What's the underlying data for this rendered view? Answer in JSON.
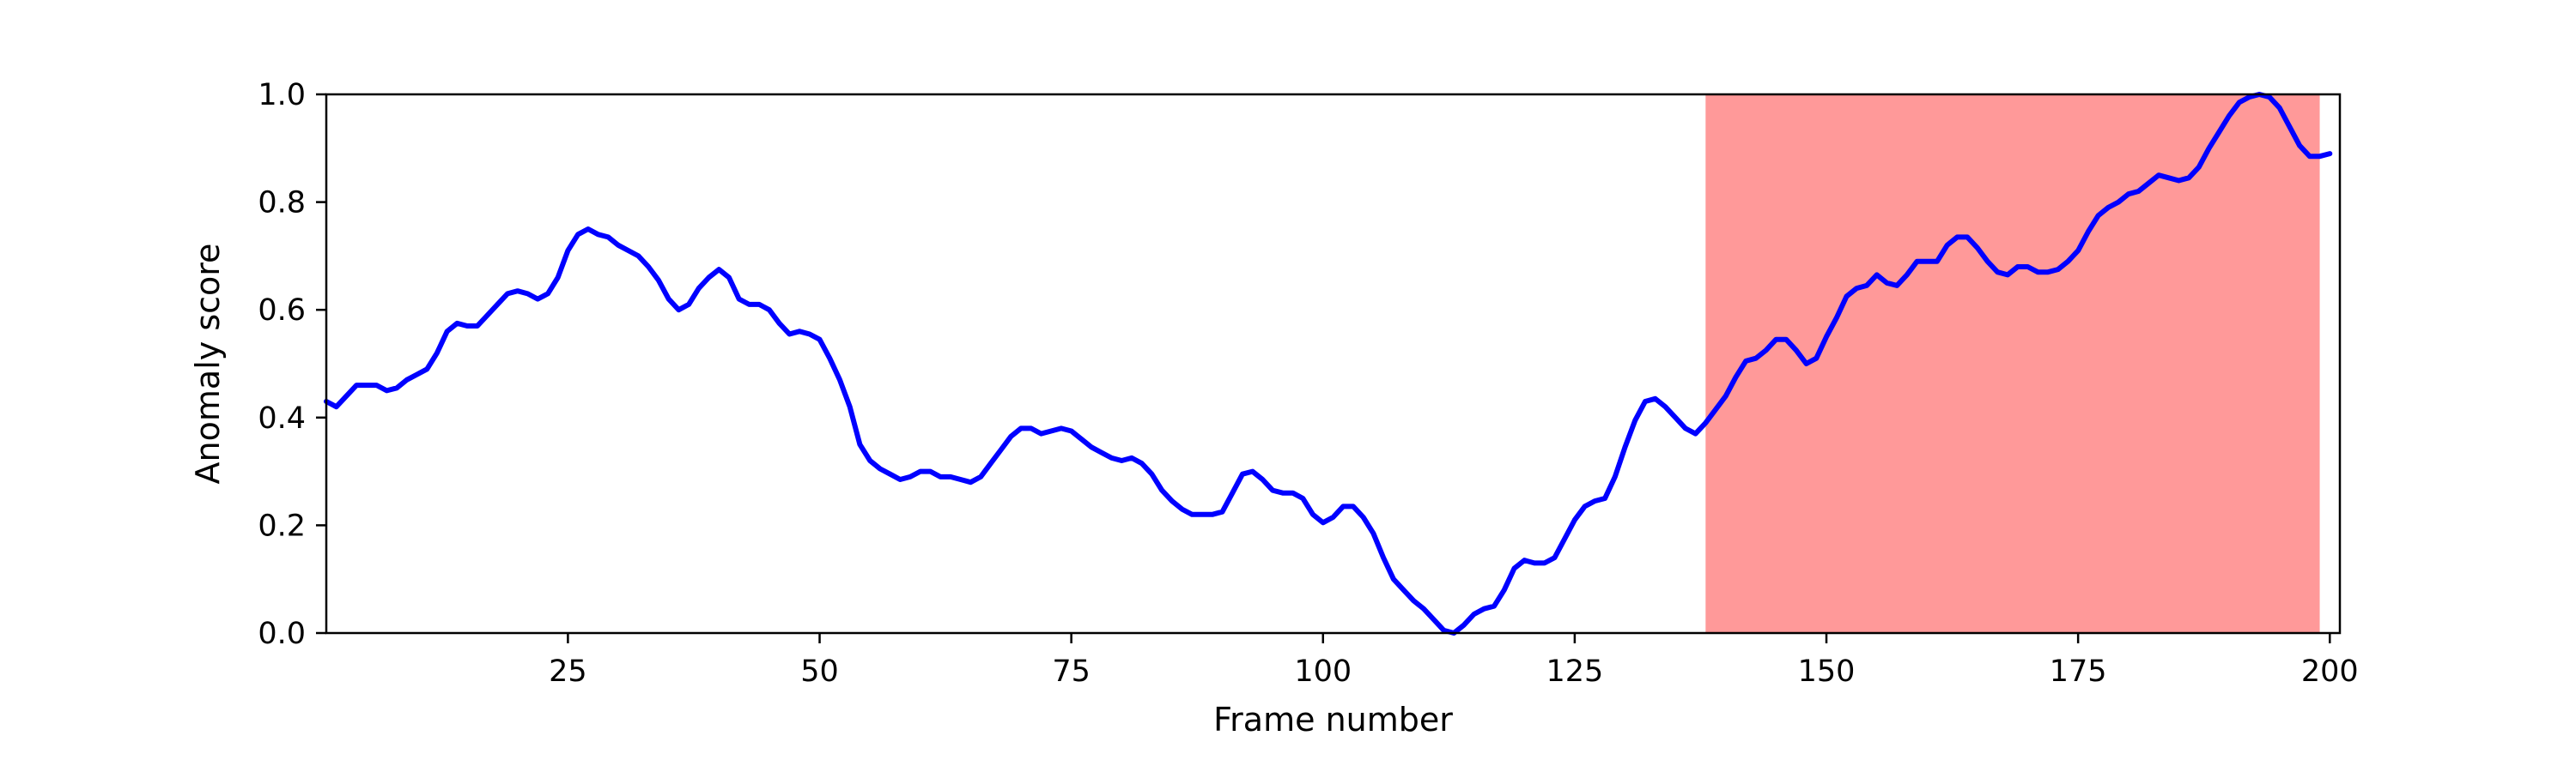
{
  "chart_data": {
    "type": "line",
    "title": "",
    "xlabel": "Frame number",
    "ylabel": "Anomaly score",
    "xlim": [
      1,
      201
    ],
    "ylim": [
      0,
      1
    ],
    "xticks": [
      25,
      50,
      75,
      100,
      125,
      150,
      175,
      200
    ],
    "yticks": [
      0.0,
      0.2,
      0.4,
      0.6,
      0.8,
      1.0
    ],
    "ytick_labels": [
      "0.0",
      "0.2",
      "0.4",
      "0.6",
      "0.8",
      "1.0"
    ],
    "grid": false,
    "highlight_region": {
      "x_start": 138,
      "x_end": 199,
      "color": "#ff9999"
    },
    "series": [
      {
        "color": "#0000ff",
        "x": [
          1,
          2,
          3,
          4,
          5,
          6,
          7,
          8,
          9,
          10,
          11,
          12,
          13,
          14,
          15,
          16,
          17,
          18,
          19,
          20,
          21,
          22,
          23,
          24,
          25,
          26,
          27,
          28,
          29,
          30,
          31,
          32,
          33,
          34,
          35,
          36,
          37,
          38,
          39,
          40,
          41,
          42,
          43,
          44,
          45,
          46,
          47,
          48,
          49,
          50,
          51,
          52,
          53,
          54,
          55,
          56,
          57,
          58,
          59,
          60,
          61,
          62,
          63,
          64,
          65,
          66,
          67,
          68,
          69,
          70,
          71,
          72,
          73,
          74,
          75,
          76,
          77,
          78,
          79,
          80,
          81,
          82,
          83,
          84,
          85,
          86,
          87,
          88,
          89,
          90,
          91,
          92,
          93,
          94,
          95,
          96,
          97,
          98,
          99,
          100,
          101,
          102,
          103,
          104,
          105,
          106,
          107,
          108,
          109,
          110,
          111,
          112,
          113,
          114,
          115,
          116,
          117,
          118,
          119,
          120,
          121,
          122,
          123,
          124,
          125,
          126,
          127,
          128,
          129,
          130,
          131,
          132,
          133,
          134,
          135,
          136,
          137,
          138,
          139,
          140,
          141,
          142,
          143,
          144,
          145,
          146,
          147,
          148,
          149,
          150,
          151,
          152,
          153,
          154,
          155,
          156,
          157,
          158,
          159,
          160,
          161,
          162,
          163,
          164,
          165,
          166,
          167,
          168,
          169,
          170,
          171,
          172,
          173,
          174,
          175,
          176,
          177,
          178,
          179,
          180,
          181,
          182,
          183,
          184,
          185,
          186,
          187,
          188,
          189,
          190,
          191,
          192,
          193,
          194,
          195,
          196,
          197,
          198,
          199,
          200
        ],
        "y": [
          0.43,
          0.42,
          0.44,
          0.46,
          0.46,
          0.46,
          0.45,
          0.455,
          0.47,
          0.48,
          0.49,
          0.52,
          0.56,
          0.575,
          0.57,
          0.57,
          0.59,
          0.61,
          0.63,
          0.635,
          0.63,
          0.62,
          0.63,
          0.66,
          0.71,
          0.74,
          0.75,
          0.74,
          0.735,
          0.72,
          0.71,
          0.7,
          0.68,
          0.655,
          0.62,
          0.6,
          0.61,
          0.64,
          0.66,
          0.675,
          0.66,
          0.62,
          0.61,
          0.61,
          0.6,
          0.575,
          0.555,
          0.56,
          0.555,
          0.545,
          0.51,
          0.47,
          0.42,
          0.35,
          0.32,
          0.305,
          0.295,
          0.285,
          0.29,
          0.3,
          0.3,
          0.29,
          0.29,
          0.285,
          0.28,
          0.29,
          0.315,
          0.34,
          0.365,
          0.38,
          0.38,
          0.37,
          0.375,
          0.38,
          0.375,
          0.36,
          0.345,
          0.335,
          0.325,
          0.32,
          0.325,
          0.315,
          0.295,
          0.265,
          0.245,
          0.23,
          0.22,
          0.22,
          0.22,
          0.225,
          0.26,
          0.295,
          0.3,
          0.285,
          0.265,
          0.26,
          0.26,
          0.25,
          0.22,
          0.205,
          0.215,
          0.235,
          0.235,
          0.215,
          0.185,
          0.14,
          0.1,
          0.08,
          0.06,
          0.045,
          0.025,
          0.005,
          0.0,
          0.015,
          0.035,
          0.045,
          0.05,
          0.08,
          0.12,
          0.135,
          0.13,
          0.13,
          0.14,
          0.175,
          0.21,
          0.235,
          0.245,
          0.25,
          0.29,
          0.345,
          0.395,
          0.43,
          0.435,
          0.42,
          0.4,
          0.38,
          0.37,
          0.39,
          0.415,
          0.44,
          0.475,
          0.505,
          0.51,
          0.525,
          0.545,
          0.545,
          0.525,
          0.5,
          0.51,
          0.55,
          0.585,
          0.625,
          0.64,
          0.645,
          0.665,
          0.65,
          0.645,
          0.665,
          0.69,
          0.69,
          0.69,
          0.72,
          0.735,
          0.735,
          0.715,
          0.69,
          0.67,
          0.665,
          0.68,
          0.68,
          0.67,
          0.67,
          0.675,
          0.69,
          0.71,
          0.745,
          0.775,
          0.79,
          0.8,
          0.815,
          0.82,
          0.835,
          0.85,
          0.845,
          0.84,
          0.845,
          0.865,
          0.9,
          0.93,
          0.96,
          0.985,
          0.995,
          1.0,
          0.995,
          0.975,
          0.94,
          0.905,
          0.885,
          0.885,
          0.89
        ]
      }
    ]
  }
}
